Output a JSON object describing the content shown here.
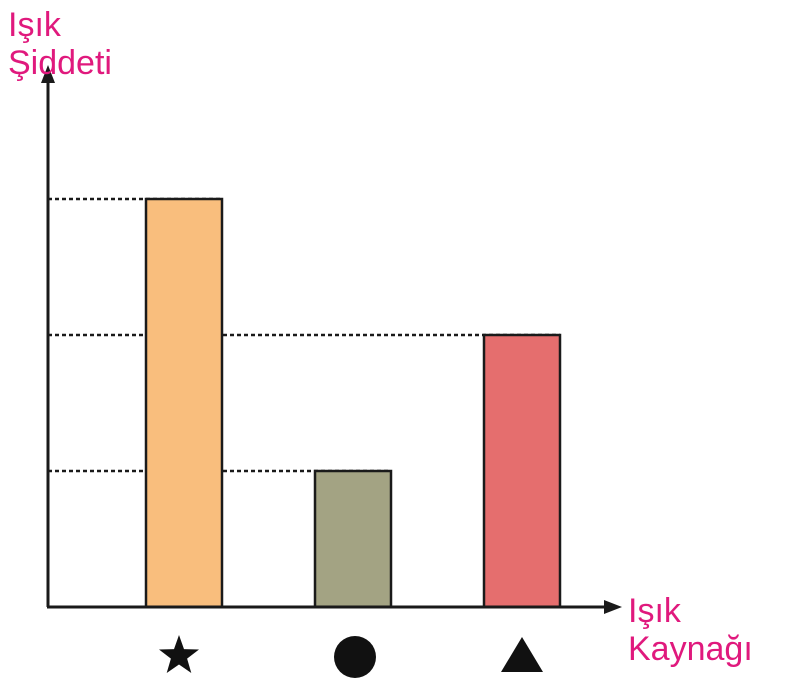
{
  "chart_data": {
    "type": "bar",
    "xlabel_lines": [
      "Işık",
      "Kaynağı"
    ],
    "ylabel_lines": [
      "Işık",
      "Şiddeti"
    ],
    "categories": [
      "star",
      "circle",
      "triangle"
    ],
    "category_icons": [
      "star-icon",
      "circle-icon",
      "triangle-icon"
    ],
    "values": [
      3,
      1,
      2
    ],
    "ylim": [
      0,
      4
    ],
    "bar_colors": [
      "#f9be7d",
      "#a3a383",
      "#e56e6e"
    ],
    "guide_lines": "dashed",
    "grid": false,
    "legend": "none"
  },
  "colors": {
    "axis_label": "#e0197d",
    "axis": "#1a1a1a",
    "bar_outline": "#1a1a1a"
  }
}
